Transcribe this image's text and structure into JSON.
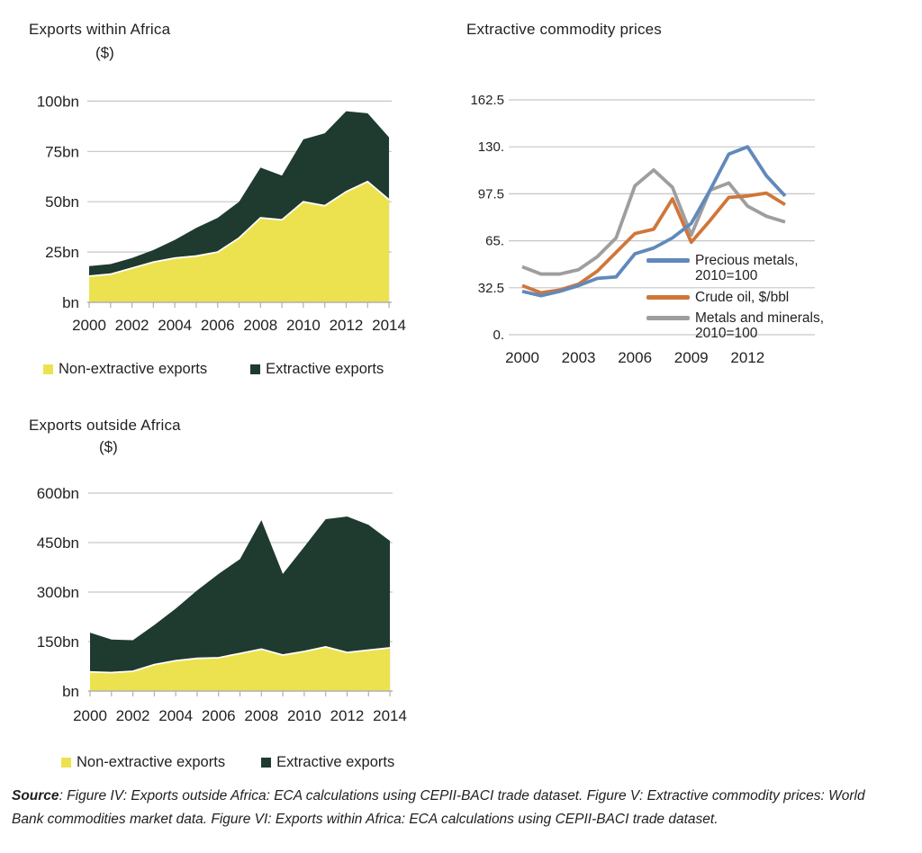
{
  "colors": {
    "non_extractive": "#ece24f",
    "extractive": "#1f3a2e",
    "precious_metals": "#6189bb",
    "crude_oil": "#d0763a",
    "metals_minerals": "#9e9e9e",
    "gridline": "#c6c6c6",
    "axis": "#b0b0b0",
    "text": "#231f20",
    "separator": "#ffffff"
  },
  "chart_data": [
    {
      "id": "exports-within-africa",
      "type": "area",
      "stacked": true,
      "title": "Exports within Africa",
      "unit_label": "($)",
      "xlabel": "",
      "ylabel": "$ billions",
      "ylim": [
        0,
        100
      ],
      "grid": true,
      "legend_position": "bottom",
      "years": [
        2000,
        2001,
        2002,
        2003,
        2004,
        2005,
        2006,
        2007,
        2008,
        2009,
        2010,
        2011,
        2012,
        2013,
        2014
      ],
      "series": [
        {
          "name": "Non-extractive exports",
          "color": "#ece24f",
          "values": [
            13,
            14,
            17,
            20,
            22,
            23,
            25,
            32,
            42,
            41,
            50,
            48,
            55,
            60,
            51
          ]
        },
        {
          "name": "Extractive exports",
          "color": "#1f3a2e",
          "values": [
            5,
            5,
            5,
            6,
            9,
            14,
            17,
            18,
            25,
            22,
            31,
            36,
            40,
            34,
            31
          ]
        }
      ],
      "totals": [
        18,
        19,
        22,
        26,
        31,
        37,
        42,
        50,
        67,
        63,
        81,
        84,
        95,
        94,
        82
      ],
      "y_ticks": [
        {
          "value": 0,
          "label": "bn"
        },
        {
          "value": 25,
          "label": "25bn"
        },
        {
          "value": 50,
          "label": "50bn"
        },
        {
          "value": 75,
          "label": "75bn"
        },
        {
          "value": 100,
          "label": "100bn"
        }
      ],
      "x_tick_labels": [
        "2000",
        "2002",
        "2004",
        "2006",
        "2008",
        "2010",
        "2012",
        "2014"
      ]
    },
    {
      "id": "extractive-commodity-prices",
      "type": "line",
      "title": "Extractive commodity prices",
      "xlabel": "",
      "ylabel": "",
      "ylim": [
        0,
        162.5
      ],
      "grid": true,
      "legend_position": "inside-right",
      "years": [
        2000,
        2001,
        2002,
        2003,
        2004,
        2005,
        2006,
        2007,
        2008,
        2009,
        2010,
        2011,
        2012,
        2013,
        2014
      ],
      "series": [
        {
          "name": "Precious metals, 2010=100",
          "legend_label": "Precious metals,\n2010=100",
          "color": "#6189bb",
          "values": [
            30,
            27,
            30,
            34,
            39,
            40,
            56,
            60,
            67,
            77,
            100,
            125,
            130,
            110,
            96
          ]
        },
        {
          "name": "Crude oil, $/bbl",
          "legend_label": "Crude oil, $/bbl",
          "color": "#d0763a",
          "values": [
            34,
            29,
            31,
            35,
            44,
            57,
            70,
            73,
            94,
            64,
            79,
            95,
            96,
            98,
            90
          ]
        },
        {
          "name": "Metals and minerals, 2010=100",
          "legend_label": "Metals and minerals,\n2010=100",
          "color": "#9e9e9e",
          "values": [
            47,
            42,
            42,
            45,
            54,
            67,
            103,
            114,
            102,
            69,
            100,
            105,
            89,
            82,
            78
          ]
        }
      ],
      "y_ticks": [
        {
          "value": 0,
          "label": "0."
        },
        {
          "value": 32.5,
          "label": "32.5"
        },
        {
          "value": 65,
          "label": "65."
        },
        {
          "value": 97.5,
          "label": "97.5"
        },
        {
          "value": 130,
          "label": "130."
        },
        {
          "value": 162.5,
          "label": "162.5"
        }
      ],
      "x_tick_labels": [
        "2000",
        "2003",
        "2006",
        "2009",
        "2012"
      ]
    },
    {
      "id": "exports-outside-africa",
      "type": "area",
      "stacked": true,
      "title": "Exports outside Africa",
      "unit_label": "($)",
      "xlabel": "",
      "ylabel": "$ billions",
      "ylim": [
        0,
        600
      ],
      "grid": true,
      "legend_position": "bottom",
      "years": [
        2000,
        2001,
        2002,
        2003,
        2004,
        2005,
        2006,
        2007,
        2008,
        2009,
        2010,
        2011,
        2012,
        2013,
        2014
      ],
      "series": [
        {
          "name": "Non-extractive exports",
          "color": "#ece24f",
          "values": [
            58,
            56,
            60,
            80,
            92,
            99,
            101,
            114,
            127,
            109,
            120,
            134,
            117,
            124,
            131
          ]
        },
        {
          "name": "Extractive exports",
          "color": "#1f3a2e",
          "values": [
            119,
            100,
            94,
            120,
            158,
            206,
            254,
            286,
            391,
            246,
            317,
            387,
            412,
            380,
            324
          ]
        }
      ],
      "totals": [
        177,
        156,
        154,
        200,
        250,
        305,
        355,
        400,
        518,
        355,
        437,
        521,
        529,
        504,
        455
      ],
      "y_ticks": [
        {
          "value": 0,
          "label": "bn"
        },
        {
          "value": 150,
          "label": "150bn"
        },
        {
          "value": 300,
          "label": "300bn"
        },
        {
          "value": 450,
          "label": "450bn"
        },
        {
          "value": 600,
          "label": "600bn"
        }
      ],
      "x_tick_labels": [
        "2000",
        "2002",
        "2004",
        "2006",
        "2008",
        "2010",
        "2012",
        "2014"
      ]
    }
  ],
  "source_note": {
    "label": "Source",
    "text": ": Figure IV: Exports outside Africa: ECA calculations using CEPII-BACI trade dataset. Figure V: Extractive commodity prices: World\nBank commodities market data. Figure VI: Exports within Africa: ECA calculations using CEPII-BACI trade dataset."
  }
}
